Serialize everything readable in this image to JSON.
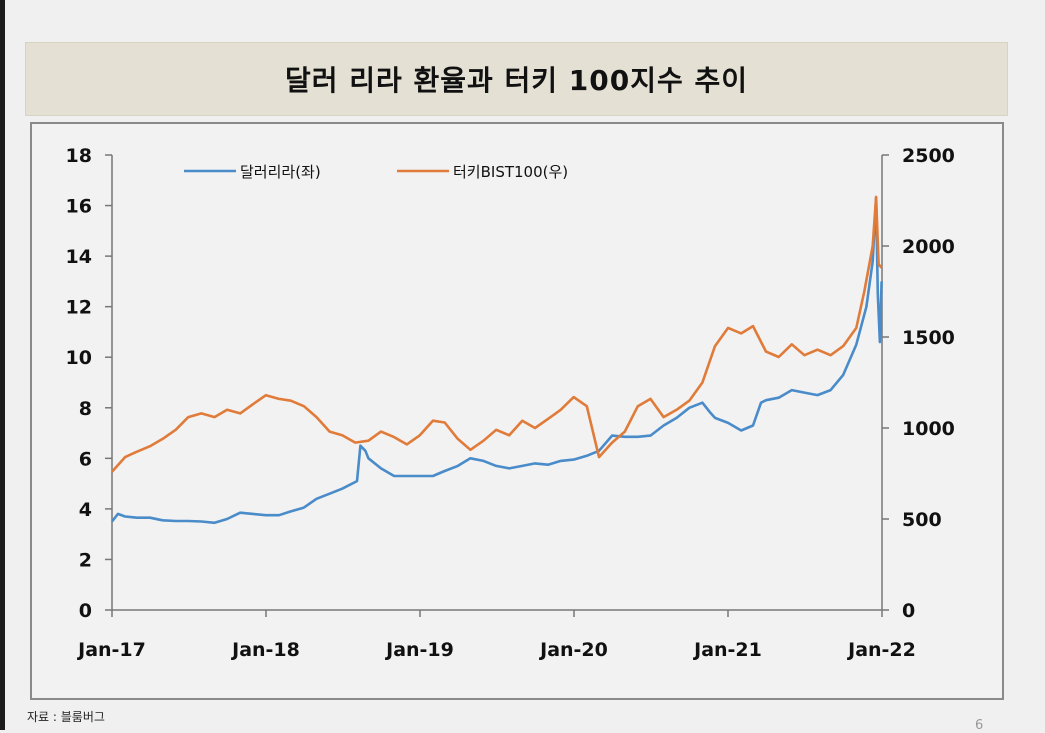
{
  "title": "달러 리라 환율과 터키 100지수 추이",
  "source": "자료 : 블룸버그",
  "page_number": "6",
  "chart_data": {
    "type": "line",
    "x_axis": {
      "range": [
        "2017-01",
        "2022-01"
      ],
      "tick_labels": [
        "Jan-17",
        "Jan-18",
        "Jan-19",
        "Jan-20",
        "Jan-21",
        "Jan-22"
      ]
    },
    "y_left": {
      "range": [
        0,
        18
      ],
      "tick_labels": [
        "0",
        "2",
        "4",
        "6",
        "8",
        "10",
        "12",
        "14",
        "16",
        "18"
      ]
    },
    "y_right": {
      "range": [
        0,
        2500
      ],
      "tick_labels": [
        "0",
        "500",
        "1000",
        "1500",
        "2000",
        "2500"
      ]
    },
    "grid": false,
    "legend_position": "top",
    "series": [
      {
        "name": "달러리라(좌)",
        "axis": "left",
        "color": "#4a8bc9",
        "points": [
          [
            "2017-01",
            3.5
          ],
          [
            "2017-01-15",
            3.8
          ],
          [
            "2017-02",
            3.7
          ],
          [
            "2017-03",
            3.65
          ],
          [
            "2017-04",
            3.65
          ],
          [
            "2017-05",
            3.55
          ],
          [
            "2017-06",
            3.52
          ],
          [
            "2017-07",
            3.52
          ],
          [
            "2017-08",
            3.5
          ],
          [
            "2017-09",
            3.45
          ],
          [
            "2017-10",
            3.6
          ],
          [
            "2017-11",
            3.85
          ],
          [
            "2017-12",
            3.8
          ],
          [
            "2018-01",
            3.75
          ],
          [
            "2018-02",
            3.75
          ],
          [
            "2018-03",
            3.9
          ],
          [
            "2018-04",
            4.05
          ],
          [
            "2018-05",
            4.4
          ],
          [
            "2018-06",
            4.6
          ],
          [
            "2018-07",
            4.8
          ],
          [
            "2018-08-05",
            5.1
          ],
          [
            "2018-08-13",
            6.5
          ],
          [
            "2018-08-25",
            6.3
          ],
          [
            "2018-09",
            6.0
          ],
          [
            "2018-10",
            5.6
          ],
          [
            "2018-11",
            5.3
          ],
          [
            "2018-12",
            5.3
          ],
          [
            "2019-01",
            5.3
          ],
          [
            "2019-02",
            5.3
          ],
          [
            "2019-03",
            5.5
          ],
          [
            "2019-04",
            5.7
          ],
          [
            "2019-05",
            6.0
          ],
          [
            "2019-06",
            5.9
          ],
          [
            "2019-07",
            5.7
          ],
          [
            "2019-08",
            5.6
          ],
          [
            "2019-09",
            5.7
          ],
          [
            "2019-10",
            5.8
          ],
          [
            "2019-11",
            5.75
          ],
          [
            "2019-12",
            5.9
          ],
          [
            "2020-01",
            5.95
          ],
          [
            "2020-02",
            6.1
          ],
          [
            "2020-03",
            6.3
          ],
          [
            "2020-04",
            6.9
          ],
          [
            "2020-05",
            6.85
          ],
          [
            "2020-06",
            6.85
          ],
          [
            "2020-07",
            6.9
          ],
          [
            "2020-08",
            7.3
          ],
          [
            "2020-09",
            7.6
          ],
          [
            "2020-10",
            8.0
          ],
          [
            "2020-11",
            8.2
          ],
          [
            "2020-11-20",
            7.8
          ],
          [
            "2020-12",
            7.6
          ],
          [
            "2021-01",
            7.4
          ],
          [
            "2021-02",
            7.1
          ],
          [
            "2021-03",
            7.3
          ],
          [
            "2021-03-20",
            8.2
          ],
          [
            "2021-04",
            8.3
          ],
          [
            "2021-05",
            8.4
          ],
          [
            "2021-06",
            8.7
          ],
          [
            "2021-07",
            8.6
          ],
          [
            "2021-08",
            8.5
          ],
          [
            "2021-09",
            8.7
          ],
          [
            "2021-10",
            9.3
          ],
          [
            "2021-11",
            10.5
          ],
          [
            "2021-11-25",
            12.0
          ],
          [
            "2021-12-10",
            13.8
          ],
          [
            "2021-12-18",
            16.3
          ],
          [
            "2021-12-22",
            12.5
          ],
          [
            "2021-12-27",
            10.6
          ],
          [
            "2021-12-31",
            13.0
          ]
        ]
      },
      {
        "name": "터키BIST100(우)",
        "axis": "right",
        "color": "#e07b39",
        "points": [
          [
            "2017-01",
            760
          ],
          [
            "2017-02",
            840
          ],
          [
            "2017-03",
            870
          ],
          [
            "2017-04",
            900
          ],
          [
            "2017-05",
            940
          ],
          [
            "2017-06",
            990
          ],
          [
            "2017-07",
            1060
          ],
          [
            "2017-08",
            1080
          ],
          [
            "2017-09",
            1060
          ],
          [
            "2017-10",
            1100
          ],
          [
            "2017-11",
            1080
          ],
          [
            "2017-12",
            1130
          ],
          [
            "2018-01",
            1180
          ],
          [
            "2018-02",
            1160
          ],
          [
            "2018-03",
            1150
          ],
          [
            "2018-04",
            1120
          ],
          [
            "2018-05",
            1060
          ],
          [
            "2018-06",
            980
          ],
          [
            "2018-07",
            960
          ],
          [
            "2018-08",
            920
          ],
          [
            "2018-09",
            930
          ],
          [
            "2018-10",
            980
          ],
          [
            "2018-11",
            950
          ],
          [
            "2018-12",
            910
          ],
          [
            "2019-01",
            960
          ],
          [
            "2019-02",
            1040
          ],
          [
            "2019-03",
            1030
          ],
          [
            "2019-04",
            940
          ],
          [
            "2019-05",
            880
          ],
          [
            "2019-06",
            930
          ],
          [
            "2019-07",
            990
          ],
          [
            "2019-08",
            960
          ],
          [
            "2019-09",
            1040
          ],
          [
            "2019-10",
            1000
          ],
          [
            "2019-11",
            1050
          ],
          [
            "2019-12",
            1100
          ],
          [
            "2020-01",
            1170
          ],
          [
            "2020-02",
            1120
          ],
          [
            "2020-03",
            840
          ],
          [
            "2020-04",
            920
          ],
          [
            "2020-05",
            980
          ],
          [
            "2020-06",
            1120
          ],
          [
            "2020-07",
            1160
          ],
          [
            "2020-08",
            1060
          ],
          [
            "2020-09",
            1100
          ],
          [
            "2020-10",
            1150
          ],
          [
            "2020-11",
            1250
          ],
          [
            "2020-12",
            1450
          ],
          [
            "2021-01",
            1550
          ],
          [
            "2021-02",
            1520
          ],
          [
            "2021-03",
            1560
          ],
          [
            "2021-04",
            1420
          ],
          [
            "2021-05",
            1390
          ],
          [
            "2021-06",
            1460
          ],
          [
            "2021-07",
            1400
          ],
          [
            "2021-08",
            1430
          ],
          [
            "2021-09",
            1400
          ],
          [
            "2021-10",
            1450
          ],
          [
            "2021-11",
            1550
          ],
          [
            "2021-11-20",
            1750
          ],
          [
            "2021-12-10",
            2000
          ],
          [
            "2021-12-18",
            2270
          ],
          [
            "2021-12-24",
            1900
          ],
          [
            "2021-12-31",
            1880
          ]
        ]
      }
    ]
  }
}
